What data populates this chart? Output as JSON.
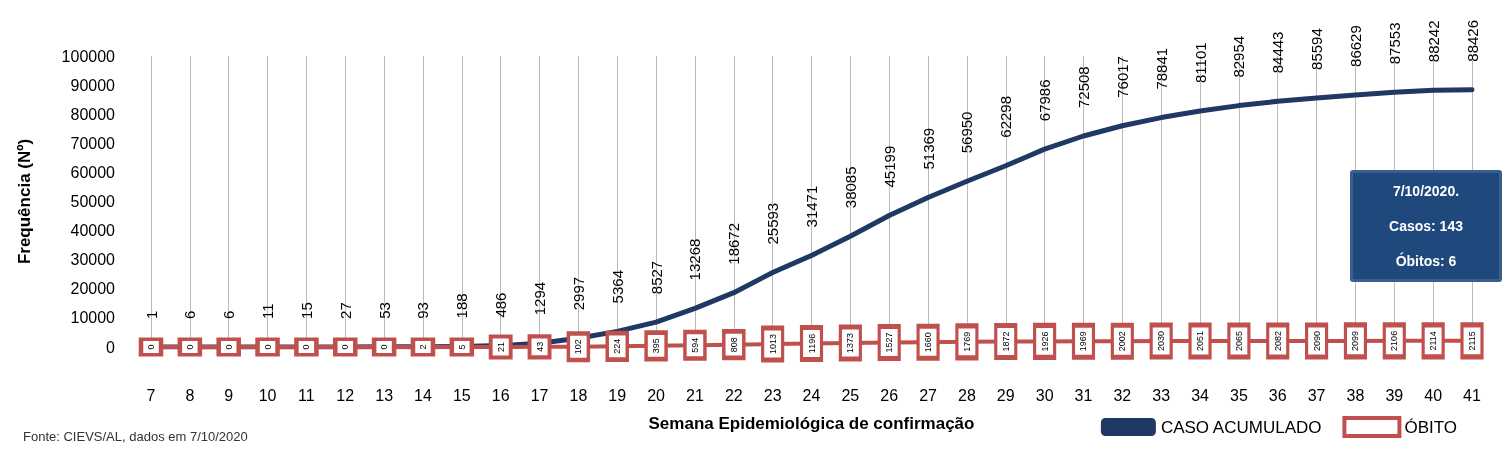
{
  "chart_data": {
    "type": "line",
    "xlabel": "Semana Epidemiológica de confirmação",
    "ylabel": "Frequência (Nº)",
    "categories": [
      "7",
      "8",
      "9",
      "10",
      "11",
      "12",
      "13",
      "14",
      "15",
      "16",
      "17",
      "18",
      "19",
      "20",
      "21",
      "22",
      "23",
      "24",
      "25",
      "26",
      "27",
      "28",
      "29",
      "30",
      "31",
      "32",
      "33",
      "34",
      "35",
      "36",
      "37",
      "38",
      "39",
      "40",
      "41"
    ],
    "series": [
      {
        "name": "CASO ACUMULADO",
        "color": "#1f3864",
        "values": [
          1,
          6,
          6,
          11,
          15,
          27,
          53,
          93,
          188,
          486,
          1294,
          2997,
          5364,
          8527,
          13268,
          18672,
          25593,
          31471,
          38085,
          45199,
          51369,
          56950,
          62298,
          67986,
          72508,
          76017,
          78841,
          81101,
          82954,
          84443,
          85594,
          86629,
          87553,
          88242,
          88426
        ]
      },
      {
        "name": "ÓBITO",
        "color": "#c0504d",
        "marker": "square",
        "values": [
          0,
          0,
          0,
          0,
          0,
          0,
          0,
          2,
          5,
          21,
          43,
          102,
          224,
          395,
          594,
          808,
          1013,
          1196,
          1373,
          1527,
          1660,
          1769,
          1872,
          1926,
          1969,
          2002,
          2030,
          2051,
          2065,
          2082,
          2090,
          2099,
          2106,
          2114,
          2115
        ]
      }
    ],
    "ylim": [
      0,
      100000
    ],
    "yticks": [
      0,
      10000,
      20000,
      30000,
      40000,
      50000,
      60000,
      70000,
      80000,
      90000,
      100000
    ],
    "grid": "x",
    "legend": "bottom right",
    "marker": "none",
    "line_style": "solid",
    "data_labels": true,
    "annotations": [
      "Fonte: CIEVS/AL, dados em 7/10/2020",
      "7/10/2020.",
      "Casos: 143",
      "Óbitos: 6"
    ]
  }
}
